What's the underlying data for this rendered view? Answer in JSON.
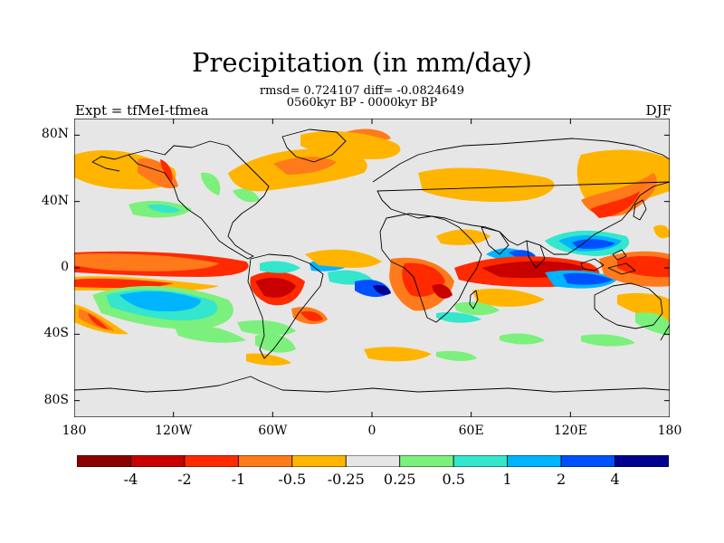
{
  "title": "Precipitation (in mm/day)",
  "stats": "rmsd= 0.724107 diff= -0.0824649",
  "period": "0560kyr BP - 0000kyr BP",
  "experiment": "Expt = tfMeI-tfmea",
  "season": "DJF",
  "lat_ticks": [
    "80N",
    "40N",
    "0",
    "40S",
    "80S"
  ],
  "lon_ticks": [
    "180",
    "120W",
    "60W",
    "0",
    "60E",
    "120E",
    "180"
  ],
  "colorbar": {
    "labels": [
      "-4",
      "-2",
      "-1",
      "-0.5",
      "-0.25",
      "0.25",
      "0.5",
      "1",
      "2",
      "4"
    ],
    "colors": [
      "#8b0000",
      "#c80000",
      "#ff2a00",
      "#ff7a1a",
      "#ffb400",
      "#e6e6e6",
      "#7cf07c",
      "#33e6cc",
      "#00b4ff",
      "#0050ff",
      "#000090"
    ]
  },
  "map_colors": {
    "ocean_neutral": "#e6e6e6",
    "coastline": "#000000"
  }
}
